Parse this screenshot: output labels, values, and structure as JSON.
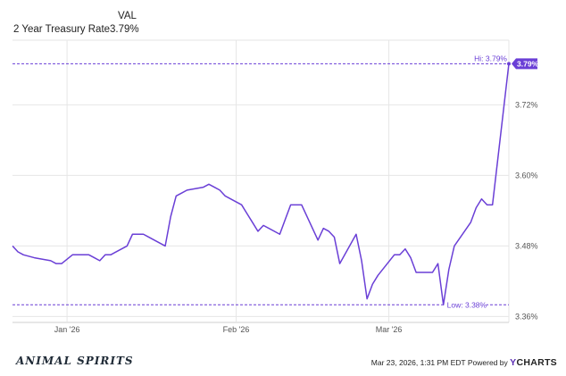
{
  "legend": {
    "column_header": "VAL",
    "series_name": "2 Year Treasury Rate",
    "series_value": "3.79%"
  },
  "colors": {
    "line": "#6a3fd6",
    "gridline": "#e6e6e6",
    "reference": "#6a3fd6",
    "badge_bg": "#6a3fd6",
    "badge_text": "#ffffff"
  },
  "chart_data": {
    "type": "line",
    "title": "",
    "xlabel": "",
    "ylabel": "",
    "x_tick_labels": [
      "Jan '26",
      "Feb '26",
      "Mar '26"
    ],
    "x_tick_dates": [
      "2026-01-01",
      "2026-02-01",
      "2026-03-01"
    ],
    "y_ticks": [
      3.36,
      3.48,
      3.6,
      3.72
    ],
    "y_tick_labels": [
      "3.36%",
      "3.48%",
      "3.60%",
      "3.72%"
    ],
    "ylim": [
      3.35,
      3.83
    ],
    "xlim": [
      "2025-12-22",
      "2026-03-23"
    ],
    "grid": true,
    "hi_label": "Hi: 3.79%",
    "low_label": "Low: 3.38%",
    "hi_value": 3.79,
    "low_value": 3.38,
    "current_value": 3.79,
    "current_badge": "3.79%",
    "series": [
      {
        "name": "2 Year Treasury Rate",
        "x": [
          "2025-12-22",
          "2025-12-23",
          "2025-12-24",
          "2025-12-26",
          "2025-12-29",
          "2025-12-30",
          "2025-12-31",
          "2026-01-02",
          "2026-01-05",
          "2026-01-06",
          "2026-01-07",
          "2026-01-08",
          "2026-01-09",
          "2026-01-12",
          "2026-01-13",
          "2026-01-14",
          "2026-01-15",
          "2026-01-16",
          "2026-01-19",
          "2026-01-20",
          "2026-01-21",
          "2026-01-22",
          "2026-01-23",
          "2026-01-26",
          "2026-01-27",
          "2026-01-28",
          "2026-01-29",
          "2026-01-30",
          "2026-02-02",
          "2026-02-03",
          "2026-02-04",
          "2026-02-05",
          "2026-02-06",
          "2026-02-09",
          "2026-02-10",
          "2026-02-11",
          "2026-02-12",
          "2026-02-13",
          "2026-02-16",
          "2026-02-17",
          "2026-02-18",
          "2026-02-19",
          "2026-02-20",
          "2026-02-23",
          "2026-02-24",
          "2026-02-25",
          "2026-02-26",
          "2026-02-27",
          "2026-03-02",
          "2026-03-03",
          "2026-03-04",
          "2026-03-05",
          "2026-03-06",
          "2026-03-09",
          "2026-03-10",
          "2026-03-11",
          "2026-03-12",
          "2026-03-13",
          "2026-03-16",
          "2026-03-17",
          "2026-03-18",
          "2026-03-19",
          "2026-03-20",
          "2026-03-23"
        ],
        "values": [
          3.48,
          3.47,
          3.465,
          3.46,
          3.455,
          3.45,
          3.45,
          3.465,
          3.465,
          3.46,
          3.455,
          3.465,
          3.465,
          3.48,
          3.5,
          3.5,
          3.5,
          3.495,
          3.48,
          3.53,
          3.565,
          3.57,
          3.575,
          3.58,
          3.585,
          3.58,
          3.575,
          3.565,
          3.55,
          3.535,
          3.52,
          3.505,
          3.515,
          3.5,
          3.525,
          3.55,
          3.55,
          3.55,
          3.49,
          3.51,
          3.505,
          3.495,
          3.45,
          3.5,
          3.455,
          3.39,
          3.415,
          3.43,
          3.465,
          3.465,
          3.475,
          3.46,
          3.435,
          3.435,
          3.45,
          3.38,
          3.44,
          3.48,
          3.52,
          3.545,
          3.56,
          3.55,
          3.55,
          3.79
        ]
      }
    ]
  },
  "footer": {
    "logo_text": "ANIMAL SPIRITS",
    "timestamp": "Mar 23, 2026, 1:31 PM EDT",
    "powered_by": "Powered by",
    "brand_y": "Y",
    "brand_rest": "CHARTS"
  }
}
